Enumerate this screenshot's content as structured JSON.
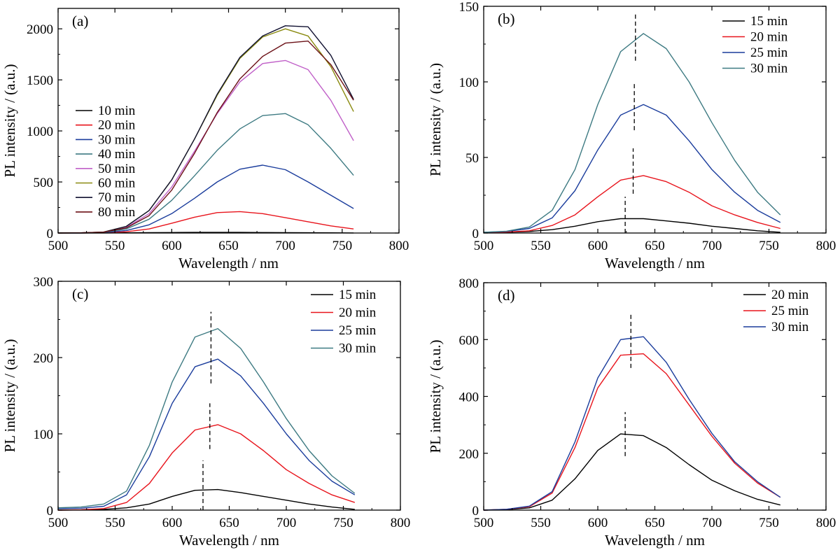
{
  "chart_data": [
    {
      "type": "line",
      "panel_label": "(a)",
      "xlabel": "Wavelength / nm",
      "ylabel": "PL intensity / (a.u.)",
      "xlim": [
        500,
        800
      ],
      "ylim": [
        0,
        2200
      ],
      "xticks": [
        500,
        550,
        600,
        650,
        700,
        750,
        800
      ],
      "yticks": [
        0,
        500,
        1000,
        1500,
        2000
      ],
      "legend_position": "middle-left",
      "dashed_markers": [],
      "series": [
        {
          "name": "10 min",
          "color": "#000000",
          "x": [
            500,
            520,
            540,
            560,
            580,
            600,
            620,
            640,
            660,
            680,
            700,
            720,
            740,
            760
          ],
          "y": [
            0,
            0,
            1,
            2,
            4,
            5,
            6,
            6,
            6,
            5,
            4,
            3,
            2,
            1
          ]
        },
        {
          "name": "20 min",
          "color": "#e8141c",
          "x": [
            500,
            520,
            540,
            560,
            580,
            600,
            620,
            640,
            660,
            680,
            700,
            720,
            740,
            760
          ],
          "y": [
            0,
            1,
            3,
            12,
            40,
            95,
            155,
            200,
            210,
            190,
            150,
            110,
            70,
            40
          ]
        },
        {
          "name": "30 min",
          "color": "#1a3c9c",
          "x": [
            500,
            520,
            540,
            560,
            580,
            600,
            620,
            640,
            660,
            680,
            700,
            720,
            740,
            760
          ],
          "y": [
            0,
            1,
            5,
            25,
            80,
            190,
            340,
            500,
            625,
            665,
            620,
            500,
            370,
            240
          ]
        },
        {
          "name": "40 min",
          "color": "#3d7a82",
          "x": [
            500,
            520,
            540,
            560,
            580,
            600,
            620,
            640,
            660,
            680,
            700,
            720,
            740,
            760
          ],
          "y": [
            0,
            1,
            6,
            40,
            135,
            320,
            560,
            810,
            1020,
            1150,
            1170,
            1060,
            830,
            565
          ]
        },
        {
          "name": "50 min",
          "color": "#c060c8",
          "x": [
            500,
            520,
            540,
            560,
            580,
            600,
            620,
            640,
            660,
            680,
            700,
            720,
            740,
            760
          ],
          "y": [
            0,
            2,
            8,
            55,
            190,
            450,
            800,
            1170,
            1480,
            1660,
            1690,
            1600,
            1300,
            905
          ]
        },
        {
          "name": "60 min",
          "color": "#8a8a10",
          "x": [
            500,
            520,
            540,
            560,
            580,
            600,
            620,
            640,
            660,
            680,
            700,
            720,
            740,
            760
          ],
          "y": [
            0,
            2,
            9,
            65,
            220,
            520,
            920,
            1350,
            1710,
            1920,
            2000,
            1930,
            1630,
            1190
          ]
        },
        {
          "name": "70 min",
          "color": "#101030",
          "x": [
            500,
            520,
            540,
            560,
            580,
            600,
            620,
            640,
            660,
            680,
            700,
            720,
            740,
            760
          ],
          "y": [
            0,
            2,
            9,
            65,
            220,
            520,
            920,
            1360,
            1720,
            1930,
            2030,
            2020,
            1740,
            1310
          ]
        },
        {
          "name": "80 min",
          "color": "#6b1016",
          "x": [
            500,
            520,
            540,
            560,
            580,
            600,
            620,
            640,
            660,
            680,
            700,
            720,
            740,
            760
          ],
          "y": [
            0,
            2,
            8,
            50,
            170,
            420,
            780,
            1180,
            1510,
            1730,
            1860,
            1880,
            1650,
            1300
          ]
        }
      ]
    },
    {
      "type": "line",
      "panel_label": "(b)",
      "xlabel": "Wavelength / nm",
      "ylabel": "PL intensity / (a.u.)",
      "xlim": [
        500,
        800
      ],
      "ylim": [
        0,
        150
      ],
      "xticks": [
        500,
        550,
        600,
        650,
        700,
        750,
        800
      ],
      "yticks": [
        0,
        50,
        100,
        150
      ],
      "legend_position": "top-right",
      "dashed_markers": [
        {
          "x": 624,
          "y_from": 0,
          "y_to": 24
        },
        {
          "x": 631,
          "y_from": 26,
          "y_to": 56
        },
        {
          "x": 632,
          "y_from": 68,
          "y_to": 100
        },
        {
          "x": 633,
          "y_from": 114,
          "y_to": 146
        }
      ],
      "series": [
        {
          "name": "15 min",
          "color": "#000000",
          "x": [
            500,
            520,
            540,
            560,
            580,
            600,
            620,
            640,
            660,
            680,
            700,
            720,
            740,
            760
          ],
          "y": [
            0.2,
            0.5,
            1,
            2.2,
            4.5,
            7.5,
            9.5,
            9.5,
            8,
            6.5,
            4.5,
            3,
            1.5,
            0.5
          ]
        },
        {
          "name": "20 min",
          "color": "#e8141c",
          "x": [
            500,
            520,
            540,
            560,
            580,
            600,
            620,
            640,
            660,
            680,
            700,
            720,
            740,
            760
          ],
          "y": [
            0.3,
            0.6,
            1.5,
            5,
            12,
            24,
            35,
            38,
            34,
            27,
            18,
            12,
            7,
            3
          ]
        },
        {
          "name": "25 min",
          "color": "#1a3c9c",
          "x": [
            500,
            520,
            540,
            560,
            580,
            600,
            620,
            640,
            660,
            680,
            700,
            720,
            740,
            760
          ],
          "y": [
            0.5,
            1,
            3,
            10,
            28,
            55,
            78,
            85,
            78,
            61,
            42,
            27,
            15,
            7
          ]
        },
        {
          "name": "30 min",
          "color": "#3d7a82",
          "x": [
            500,
            520,
            540,
            560,
            580,
            600,
            620,
            640,
            660,
            680,
            700,
            720,
            740,
            760
          ],
          "y": [
            0.5,
            1.2,
            4,
            15,
            42,
            85,
            120,
            132,
            122,
            100,
            73,
            48,
            27,
            12
          ]
        }
      ]
    },
    {
      "type": "line",
      "panel_label": "(c)",
      "xlabel": "Wavelength / nm",
      "ylabel": "PL intensity / (a.u.)",
      "xlim": [
        500,
        800
      ],
      "ylim": [
        0,
        300
      ],
      "xticks": [
        500,
        550,
        600,
        650,
        700,
        750,
        800
      ],
      "yticks": [
        0,
        100,
        200,
        300
      ],
      "legend_position": "top-right",
      "dashed_markers": [
        {
          "x": 627,
          "y_from": 0,
          "y_to": 65
        },
        {
          "x": 633,
          "y_from": 80,
          "y_to": 140
        },
        {
          "x": 634,
          "y_from": 166,
          "y_to": 260
        }
      ],
      "series": [
        {
          "name": "15 min",
          "color": "#000000",
          "x": [
            500,
            520,
            540,
            560,
            580,
            600,
            620,
            640,
            660,
            680,
            700,
            720,
            740,
            760
          ],
          "y": [
            0,
            0.3,
            1,
            3,
            8,
            18,
            26,
            27,
            23,
            18,
            13,
            8,
            4,
            1
          ]
        },
        {
          "name": "20 min",
          "color": "#e8141c",
          "x": [
            500,
            520,
            540,
            560,
            580,
            600,
            620,
            640,
            660,
            680,
            700,
            720,
            740,
            760
          ],
          "y": [
            0,
            0.5,
            2,
            10,
            35,
            75,
            105,
            112,
            100,
            78,
            53,
            35,
            20,
            10
          ]
        },
        {
          "name": "25 min",
          "color": "#1a3c9c",
          "x": [
            500,
            520,
            540,
            560,
            580,
            600,
            620,
            640,
            660,
            680,
            700,
            720,
            740,
            760
          ],
          "y": [
            2,
            2.5,
            5,
            20,
            70,
            140,
            188,
            198,
            176,
            140,
            100,
            65,
            38,
            20
          ]
        },
        {
          "name": "30 min",
          "color": "#3d7a82",
          "x": [
            500,
            520,
            540,
            560,
            580,
            600,
            620,
            640,
            660,
            680,
            700,
            720,
            740,
            760
          ],
          "y": [
            3,
            4,
            8,
            25,
            85,
            168,
            227,
            238,
            212,
            168,
            120,
            78,
            45,
            22
          ]
        }
      ]
    },
    {
      "type": "line",
      "panel_label": "(d)",
      "xlabel": "Wavelength / nm",
      "ylabel": "PL intensity / (a.u.)",
      "xlim": [
        500,
        800
      ],
      "ylim": [
        0,
        800
      ],
      "xticks": [
        500,
        550,
        600,
        650,
        700,
        750,
        800
      ],
      "yticks": [
        0,
        200,
        400,
        600,
        800
      ],
      "legend_position": "top-right",
      "dashed_markers": [
        {
          "x": 624,
          "y_from": 190,
          "y_to": 345
        },
        {
          "x": 629,
          "y_from": 500,
          "y_to": 690
        }
      ],
      "series": [
        {
          "name": "20 min",
          "color": "#000000",
          "x": [
            500,
            520,
            540,
            560,
            580,
            600,
            620,
            640,
            660,
            680,
            700,
            720,
            740,
            760
          ],
          "y": [
            0,
            2,
            8,
            35,
            110,
            210,
            268,
            262,
            220,
            160,
            105,
            68,
            38,
            18
          ]
        },
        {
          "name": "25 min",
          "color": "#e8141c",
          "x": [
            500,
            520,
            540,
            560,
            580,
            600,
            620,
            640,
            660,
            680,
            700,
            720,
            740,
            760
          ],
          "y": [
            0,
            3,
            12,
            60,
            220,
            430,
            545,
            550,
            480,
            370,
            260,
            165,
            95,
            45
          ]
        },
        {
          "name": "30 min",
          "color": "#1a3c9c",
          "x": [
            500,
            520,
            540,
            560,
            580,
            600,
            620,
            640,
            660,
            680,
            700,
            720,
            740,
            760
          ],
          "y": [
            0,
            3,
            14,
            65,
            240,
            465,
            600,
            610,
            520,
            390,
            270,
            170,
            100,
            45
          ]
        }
      ]
    }
  ]
}
